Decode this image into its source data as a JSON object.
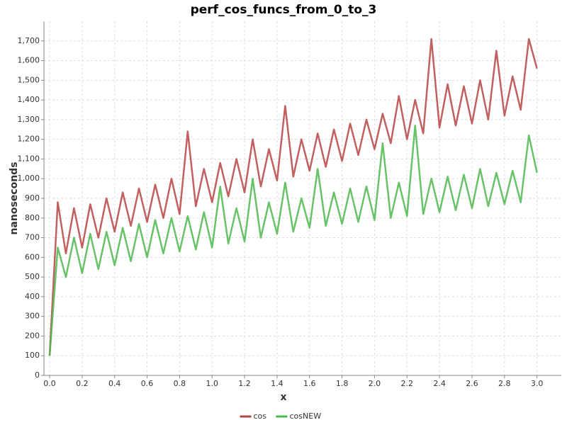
{
  "chart_data": {
    "type": "line",
    "title": "perf_cos_funcs_from_0_to_3",
    "x_label": "x",
    "y_label": "nanoseconds",
    "x": [
      0,
      0.05,
      0.1,
      0.15,
      0.2,
      0.25,
      0.3,
      0.35,
      0.4,
      0.45,
      0.5,
      0.55,
      0.6,
      0.65,
      0.7,
      0.75,
      0.8,
      0.85,
      0.9,
      0.95,
      1,
      1.05,
      1.1,
      1.15,
      1.2,
      1.25,
      1.3,
      1.35,
      1.4,
      1.45,
      1.5,
      1.55,
      1.6,
      1.65,
      1.7,
      1.75,
      1.8,
      1.85,
      1.9,
      1.95,
      2,
      2.05,
      2.1,
      2.15,
      2.2,
      2.25,
      2.3,
      2.35,
      2.4,
      2.45,
      2.5,
      2.55,
      2.6,
      2.65,
      2.7,
      2.75,
      2.8,
      2.85,
      2.9,
      2.95,
      3
    ],
    "series": [
      {
        "name": "cos",
        "color": "#b74444",
        "values": [
          100,
          880,
          620,
          850,
          650,
          870,
          700,
          900,
          730,
          930,
          760,
          950,
          780,
          970,
          800,
          1000,
          820,
          1240,
          860,
          1050,
          880,
          1080,
          910,
          1100,
          930,
          1200,
          960,
          1150,
          990,
          1370,
          1010,
          1200,
          1040,
          1230,
          1060,
          1250,
          1090,
          1280,
          1120,
          1300,
          1150,
          1330,
          1180,
          1420,
          1200,
          1400,
          1230,
          1710,
          1260,
          1480,
          1270,
          1470,
          1280,
          1500,
          1300,
          1650,
          1320,
          1520,
          1350,
          1710,
          1560
        ]
      },
      {
        "name": "cosNEW",
        "color": "#4db84d",
        "values": [
          100,
          650,
          500,
          700,
          520,
          720,
          540,
          730,
          560,
          750,
          580,
          770,
          600,
          790,
          620,
          800,
          630,
          810,
          640,
          830,
          650,
          960,
          670,
          850,
          680,
          1000,
          700,
          880,
          720,
          980,
          730,
          900,
          750,
          1050,
          760,
          930,
          770,
          950,
          780,
          960,
          790,
          1180,
          800,
          980,
          810,
          1270,
          820,
          1000,
          830,
          1010,
          840,
          1020,
          850,
          1050,
          860,
          1030,
          870,
          1040,
          880,
          1220,
          1030
        ]
      }
    ],
    "xlim": [
      -0.035,
      3.15
    ],
    "ylim": [
      0,
      1800
    ],
    "xticks": [
      {
        "value": 0,
        "label": "0.0"
      },
      0.2,
      0.4,
      0.6,
      0.8,
      {
        "value": 1,
        "label": "1.0"
      },
      1.2,
      1.4,
      1.6,
      1.8,
      {
        "value": 2,
        "label": "2.0"
      },
      2.2,
      2.4,
      2.6,
      2.8,
      {
        "value": 3,
        "label": "3.0"
      }
    ],
    "yticks": [
      0,
      100,
      200,
      300,
      400,
      500,
      600,
      700,
      800,
      900,
      {
        "value": 1000,
        "label": "1,000"
      },
      {
        "value": 1100,
        "label": "1,100"
      },
      {
        "value": 1200,
        "label": "1,200"
      },
      {
        "value": 1300,
        "label": "1,300"
      },
      {
        "value": 1400,
        "label": "1,400"
      },
      {
        "value": 1500,
        "label": "1,500"
      },
      {
        "value": 1600,
        "label": "1,600"
      },
      {
        "value": 1700,
        "label": "1,700"
      }
    ],
    "grid": true,
    "legend": "bottom"
  }
}
